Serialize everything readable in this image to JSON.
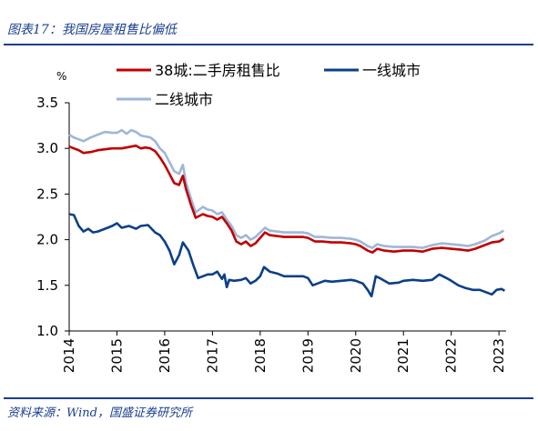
{
  "title": "图表17：我国房屋租售比偏低",
  "source": "资料来源：Wind，国盛证券研究所",
  "chart_data": {
    "type": "line",
    "ylabel": "%",
    "ylim": [
      1.0,
      3.5
    ],
    "yticks": [
      1.0,
      1.5,
      2.0,
      2.5,
      3.0,
      3.5
    ],
    "xlim": [
      2014.0,
      2023.15
    ],
    "xticks": [
      "2014",
      "2015",
      "2016",
      "2017",
      "2018",
      "2019",
      "2020",
      "2021",
      "2022",
      "2023"
    ],
    "grid": false,
    "legend": "top",
    "series": [
      {
        "name": "38城:二手房租售比",
        "color": "#c00000",
        "points": [
          [
            2014.0,
            3.02
          ],
          [
            2014.1,
            3.0
          ],
          [
            2014.2,
            2.98
          ],
          [
            2014.3,
            2.95
          ],
          [
            2014.45,
            2.96
          ],
          [
            2014.6,
            2.98
          ],
          [
            2014.75,
            2.99
          ],
          [
            2014.9,
            3.0
          ],
          [
            2015.0,
            3.0
          ],
          [
            2015.1,
            3.0
          ],
          [
            2015.2,
            3.01
          ],
          [
            2015.3,
            3.02
          ],
          [
            2015.4,
            3.03
          ],
          [
            2015.5,
            3.0
          ],
          [
            2015.6,
            3.01
          ],
          [
            2015.7,
            3.0
          ],
          [
            2015.8,
            2.97
          ],
          [
            2015.9,
            2.9
          ],
          [
            2016.0,
            2.82
          ],
          [
            2016.1,
            2.72
          ],
          [
            2016.2,
            2.62
          ],
          [
            2016.3,
            2.6
          ],
          [
            2016.38,
            2.7
          ],
          [
            2016.45,
            2.55
          ],
          [
            2016.55,
            2.38
          ],
          [
            2016.65,
            2.24
          ],
          [
            2016.8,
            2.28
          ],
          [
            2016.9,
            2.26
          ],
          [
            2017.0,
            2.25
          ],
          [
            2017.1,
            2.22
          ],
          [
            2017.2,
            2.25
          ],
          [
            2017.3,
            2.18
          ],
          [
            2017.4,
            2.1
          ],
          [
            2017.5,
            1.98
          ],
          [
            2017.6,
            1.95
          ],
          [
            2017.7,
            1.98
          ],
          [
            2017.8,
            1.93
          ],
          [
            2017.9,
            1.96
          ],
          [
            2018.0,
            2.02
          ],
          [
            2018.1,
            2.08
          ],
          [
            2018.2,
            2.05
          ],
          [
            2018.35,
            2.04
          ],
          [
            2018.5,
            2.03
          ],
          [
            2018.7,
            2.03
          ],
          [
            2018.9,
            2.03
          ],
          [
            2019.0,
            2.02
          ],
          [
            2019.15,
            1.98
          ],
          [
            2019.3,
            1.98
          ],
          [
            2019.5,
            1.97
          ],
          [
            2019.7,
            1.97
          ],
          [
            2019.9,
            1.96
          ],
          [
            2020.0,
            1.95
          ],
          [
            2020.1,
            1.93
          ],
          [
            2020.25,
            1.88
          ],
          [
            2020.35,
            1.86
          ],
          [
            2020.45,
            1.9
          ],
          [
            2020.6,
            1.88
          ],
          [
            2020.8,
            1.87
          ],
          [
            2021.0,
            1.88
          ],
          [
            2021.2,
            1.88
          ],
          [
            2021.4,
            1.87
          ],
          [
            2021.6,
            1.9
          ],
          [
            2021.8,
            1.91
          ],
          [
            2022.0,
            1.9
          ],
          [
            2022.2,
            1.89
          ],
          [
            2022.35,
            1.88
          ],
          [
            2022.5,
            1.9
          ],
          [
            2022.7,
            1.94
          ],
          [
            2022.85,
            1.97
          ],
          [
            2023.0,
            1.98
          ],
          [
            2023.1,
            2.01
          ]
        ]
      },
      {
        "name": "一线城市",
        "color": "#0b3f87",
        "points": [
          [
            2014.0,
            2.28
          ],
          [
            2014.1,
            2.27
          ],
          [
            2014.2,
            2.15
          ],
          [
            2014.3,
            2.09
          ],
          [
            2014.4,
            2.12
          ],
          [
            2014.5,
            2.08
          ],
          [
            2014.6,
            2.09
          ],
          [
            2014.75,
            2.12
          ],
          [
            2014.9,
            2.15
          ],
          [
            2015.0,
            2.18
          ],
          [
            2015.1,
            2.13
          ],
          [
            2015.25,
            2.15
          ],
          [
            2015.4,
            2.12
          ],
          [
            2015.5,
            2.15
          ],
          [
            2015.65,
            2.16
          ],
          [
            2015.8,
            2.08
          ],
          [
            2015.9,
            2.05
          ],
          [
            2016.0,
            1.98
          ],
          [
            2016.1,
            1.88
          ],
          [
            2016.2,
            1.73
          ],
          [
            2016.3,
            1.83
          ],
          [
            2016.38,
            1.97
          ],
          [
            2016.5,
            1.88
          ],
          [
            2016.6,
            1.72
          ],
          [
            2016.7,
            1.58
          ],
          [
            2016.8,
            1.6
          ],
          [
            2016.9,
            1.62
          ],
          [
            2017.0,
            1.62
          ],
          [
            2017.1,
            1.65
          ],
          [
            2017.2,
            1.57
          ],
          [
            2017.25,
            1.62
          ],
          [
            2017.3,
            1.48
          ],
          [
            2017.35,
            1.56
          ],
          [
            2017.45,
            1.55
          ],
          [
            2017.6,
            1.56
          ],
          [
            2017.7,
            1.58
          ],
          [
            2017.8,
            1.52
          ],
          [
            2017.9,
            1.55
          ],
          [
            2018.0,
            1.6
          ],
          [
            2018.08,
            1.7
          ],
          [
            2018.2,
            1.65
          ],
          [
            2018.35,
            1.63
          ],
          [
            2018.5,
            1.6
          ],
          [
            2018.7,
            1.6
          ],
          [
            2018.9,
            1.6
          ],
          [
            2019.0,
            1.58
          ],
          [
            2019.1,
            1.5
          ],
          [
            2019.2,
            1.52
          ],
          [
            2019.35,
            1.55
          ],
          [
            2019.5,
            1.54
          ],
          [
            2019.7,
            1.55
          ],
          [
            2019.9,
            1.56
          ],
          [
            2020.0,
            1.55
          ],
          [
            2020.15,
            1.52
          ],
          [
            2020.25,
            1.45
          ],
          [
            2020.33,
            1.38
          ],
          [
            2020.42,
            1.6
          ],
          [
            2020.5,
            1.58
          ],
          [
            2020.7,
            1.52
          ],
          [
            2020.9,
            1.53
          ],
          [
            2021.0,
            1.55
          ],
          [
            2021.2,
            1.56
          ],
          [
            2021.4,
            1.55
          ],
          [
            2021.6,
            1.56
          ],
          [
            2021.75,
            1.62
          ],
          [
            2021.9,
            1.58
          ],
          [
            2022.0,
            1.55
          ],
          [
            2022.15,
            1.5
          ],
          [
            2022.3,
            1.47
          ],
          [
            2022.45,
            1.45
          ],
          [
            2022.6,
            1.45
          ],
          [
            2022.75,
            1.42
          ],
          [
            2022.85,
            1.4
          ],
          [
            2022.95,
            1.45
          ],
          [
            2023.05,
            1.46
          ],
          [
            2023.12,
            1.44
          ]
        ]
      },
      {
        "name": "二线城市",
        "color": "#9fb6d8",
        "points": [
          [
            2014.0,
            3.15
          ],
          [
            2014.1,
            3.12
          ],
          [
            2014.2,
            3.1
          ],
          [
            2014.3,
            3.08
          ],
          [
            2014.45,
            3.12
          ],
          [
            2014.6,
            3.15
          ],
          [
            2014.75,
            3.18
          ],
          [
            2014.9,
            3.17
          ],
          [
            2015.0,
            3.17
          ],
          [
            2015.1,
            3.2
          ],
          [
            2015.2,
            3.16
          ],
          [
            2015.3,
            3.2
          ],
          [
            2015.4,
            3.18
          ],
          [
            2015.5,
            3.14
          ],
          [
            2015.6,
            3.13
          ],
          [
            2015.7,
            3.12
          ],
          [
            2015.8,
            3.08
          ],
          [
            2015.9,
            3.0
          ],
          [
            2016.0,
            2.95
          ],
          [
            2016.1,
            2.85
          ],
          [
            2016.2,
            2.75
          ],
          [
            2016.3,
            2.72
          ],
          [
            2016.38,
            2.82
          ],
          [
            2016.45,
            2.62
          ],
          [
            2016.55,
            2.45
          ],
          [
            2016.65,
            2.3
          ],
          [
            2016.8,
            2.36
          ],
          [
            2016.9,
            2.33
          ],
          [
            2017.0,
            2.32
          ],
          [
            2017.1,
            2.28
          ],
          [
            2017.2,
            2.3
          ],
          [
            2017.3,
            2.22
          ],
          [
            2017.4,
            2.15
          ],
          [
            2017.5,
            2.05
          ],
          [
            2017.6,
            2.02
          ],
          [
            2017.7,
            2.05
          ],
          [
            2017.8,
            2.0
          ],
          [
            2017.9,
            2.03
          ],
          [
            2018.0,
            2.08
          ],
          [
            2018.1,
            2.13
          ],
          [
            2018.2,
            2.1
          ],
          [
            2018.35,
            2.09
          ],
          [
            2018.5,
            2.08
          ],
          [
            2018.7,
            2.08
          ],
          [
            2018.9,
            2.08
          ],
          [
            2019.0,
            2.07
          ],
          [
            2019.15,
            2.03
          ],
          [
            2019.3,
            2.03
          ],
          [
            2019.5,
            2.02
          ],
          [
            2019.7,
            2.02
          ],
          [
            2019.9,
            2.01
          ],
          [
            2020.0,
            2.0
          ],
          [
            2020.1,
            1.98
          ],
          [
            2020.25,
            1.93
          ],
          [
            2020.35,
            1.91
          ],
          [
            2020.45,
            1.95
          ],
          [
            2020.6,
            1.93
          ],
          [
            2020.8,
            1.92
          ],
          [
            2021.0,
            1.92
          ],
          [
            2021.2,
            1.92
          ],
          [
            2021.4,
            1.91
          ],
          [
            2021.6,
            1.94
          ],
          [
            2021.8,
            1.96
          ],
          [
            2022.0,
            1.95
          ],
          [
            2022.2,
            1.94
          ],
          [
            2022.35,
            1.93
          ],
          [
            2022.5,
            1.95
          ],
          [
            2022.7,
            1.99
          ],
          [
            2022.85,
            2.04
          ],
          [
            2023.0,
            2.07
          ],
          [
            2023.1,
            2.1
          ]
        ]
      }
    ]
  }
}
